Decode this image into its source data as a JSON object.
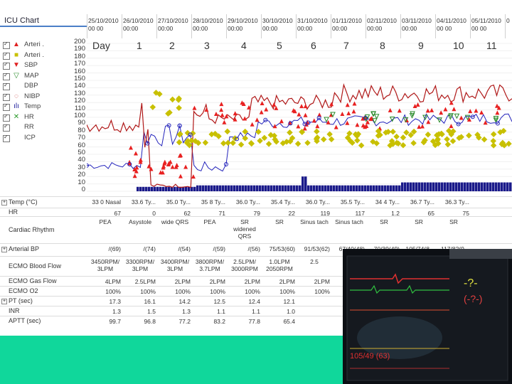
{
  "title": "ICU Chart",
  "dates": [
    {
      "d": "25/10/2010",
      "t": "00 00"
    },
    {
      "d": "26/10/2010",
      "t": "00:00"
    },
    {
      "d": "27/10/2010",
      "t": "00:00"
    },
    {
      "d": "28/10/2010",
      "t": "00:00"
    },
    {
      "d": "29/10/2010",
      "t": "00:00"
    },
    {
      "d": "30/10/2010",
      "t": "00:00"
    },
    {
      "d": "31/10/2010",
      "t": "00:00"
    },
    {
      "d": "01/11/2010",
      "t": "00:00"
    },
    {
      "d": "02/11/2010",
      "t": "00:00"
    },
    {
      "d": "03/11/2010",
      "t": "00:00"
    },
    {
      "d": "04/11/2010",
      "t": "00 00"
    },
    {
      "d": "05/11/2010",
      "t": "00 00"
    },
    {
      "d": "0",
      "t": ""
    }
  ],
  "legend": [
    {
      "label": "Arteri .",
      "symbol": "▲",
      "color": "#e02020"
    },
    {
      "label": "Arteri .",
      "symbol": "■",
      "color": "#c8c000"
    },
    {
      "label": "SBP",
      "symbol": "▼",
      "color": "#e02020"
    },
    {
      "label": "MAP",
      "symbol": "▽",
      "color": "#2a8a2a"
    },
    {
      "label": "DBP",
      "symbol": "",
      "color": "#333333"
    },
    {
      "label": "NIBP",
      "symbol": "◌",
      "color": "#c03030"
    },
    {
      "label": "Temp",
      "symbol": "ılı",
      "color": "#1a1a9a"
    },
    {
      "label": "HR",
      "symbol": "✕",
      "color": "#2a9a2a"
    },
    {
      "label": "RR",
      "symbol": "",
      "color": "#333333"
    },
    {
      "label": "ICP",
      "symbol": "",
      "color": "#333333"
    }
  ],
  "y_ticks": [
    "200",
    "190",
    "180",
    "170",
    "160",
    "150",
    "140",
    "130",
    "120",
    "110",
    "100",
    "90",
    "80",
    "70",
    "60",
    "50",
    "40",
    "30",
    "20",
    "10",
    "0"
  ],
  "day_label": "Day",
  "days": [
    "1",
    "2",
    "3",
    "4",
    "5",
    "6",
    "7",
    "8",
    "9",
    "10",
    "11"
  ],
  "table": {
    "temp": {
      "label": "Temp (°C)",
      "values": [
        "33 0 Nasal",
        "33.6 Ty...",
        "35.0 Ty...",
        "35 8 Ty...",
        "36.0 Ty...",
        "35.4 Ty...",
        "36.0 Ty...",
        "35.5 Ty...",
        "34 4 Ty...",
        "36.7 Ty...",
        "36.3 Ty..."
      ]
    },
    "hr": {
      "label": "HR",
      "values": [
        "67",
        "0",
        "62",
        "71",
        "79",
        "22",
        "119",
        "117",
        "1.2",
        "65",
        "75"
      ]
    },
    "rhythm": {
      "label": "Cardiac Rhythm",
      "values": [
        "PEA",
        "Asystole",
        "wide QRS",
        "PEA",
        "SR\nwidened\nQRS",
        "SR",
        "Sinus tach",
        "Sinus tach",
        "SR",
        "SR",
        "SR"
      ]
    },
    "abp": {
      "label": "Arterial BP",
      "values": [
        "/(69)",
        "/(74)",
        "/(54)",
        "/(59)",
        "/(56)",
        "75/53(60)",
        "91/53(62)",
        "67/40(48)",
        "70/39(49)",
        "105/74(8...",
        "117/82(9..."
      ]
    },
    "ecmo_blood": {
      "label": "ECMO Blood Flow",
      "values": [
        "3450RPM/\n3LPM",
        "3300RPM/\n3LPM",
        "3400RPM/\n3LPM",
        "3800RPM/\n3.7LPM",
        "2.5LPM/\n3000RPM",
        "1.0LPM\n2050RPM",
        "2.5"
      ]
    },
    "ecmo_gas": {
      "label": "ECMO Gas Flow",
      "values": [
        "4LPM",
        "2.5LPM",
        "2LPM",
        "2LPM",
        "2LPM",
        "2LPM",
        "2LPM"
      ]
    },
    "ecmo_o2": {
      "label": "ECMO O2",
      "values": [
        "100%",
        "100%",
        "100%",
        "100%",
        "100%",
        "100%",
        "100%"
      ]
    },
    "pt": {
      "label": "PT (sec)",
      "values": [
        "17.3",
        "16.1",
        "14.2",
        "12.5",
        "12.4",
        "12.1"
      ]
    },
    "inr": {
      "label": "INR",
      "values": [
        "1.3",
        "1.5",
        "1.3",
        "1.1",
        "1.1",
        "1.0"
      ]
    },
    "aptt": {
      "label": "APTT (sec)",
      "values": [
        "99.7",
        "96.8",
        "77.2",
        "83.2",
        "77.8",
        "65.4"
      ]
    }
  },
  "monitor": {
    "values": [
      "-?-",
      "(-?-)",
      "105/49 (63)"
    ]
  },
  "colors": {
    "accent": "#4b7fc7",
    "green_band": "#10d79b",
    "monitor_bg": "#0c0f14"
  }
}
